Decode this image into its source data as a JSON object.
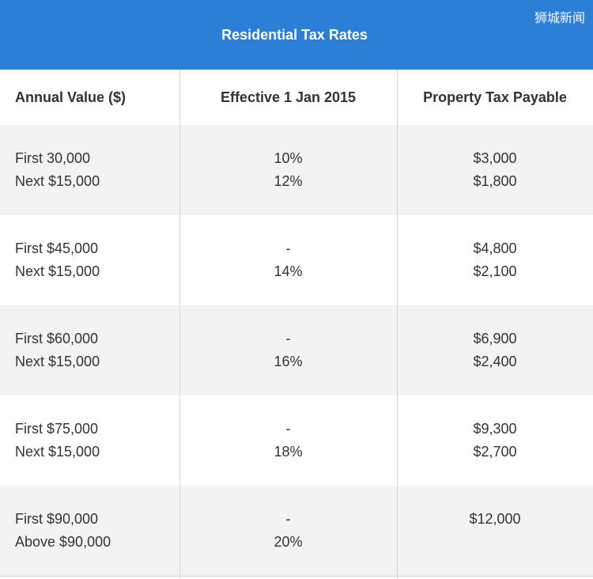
{
  "banner": {
    "title": "Residential Tax Rates",
    "watermark": "狮城新闻",
    "color": "#2b7fd6"
  },
  "table": {
    "headers": [
      "Annual Value ($)",
      "Effective 1 Jan 2015",
      "Property Tax Payable"
    ],
    "rows": [
      {
        "annual_value": [
          "First 30,000",
          "Next $15,000"
        ],
        "rate": [
          "10%",
          "12%"
        ],
        "payable": [
          "$3,000",
          "$1,800"
        ]
      },
      {
        "annual_value": [
          "First $45,000",
          "Next $15,000"
        ],
        "rate": [
          "-",
          "14%"
        ],
        "payable": [
          "$4,800",
          "$2,100"
        ]
      },
      {
        "annual_value": [
          "First $60,000",
          "Next $15,000"
        ],
        "rate": [
          "-",
          "16%"
        ],
        "payable": [
          "$6,900",
          "$2,400"
        ]
      },
      {
        "annual_value": [
          "First $75,000",
          "Next $15,000"
        ],
        "rate": [
          "-",
          "18%"
        ],
        "payable": [
          "$9,300",
          "$2,700"
        ]
      },
      {
        "annual_value": [
          "First $90,000",
          "Above $90,000"
        ],
        "rate": [
          "-",
          "20%"
        ],
        "payable": [
          "$12,000",
          ""
        ]
      }
    ]
  }
}
